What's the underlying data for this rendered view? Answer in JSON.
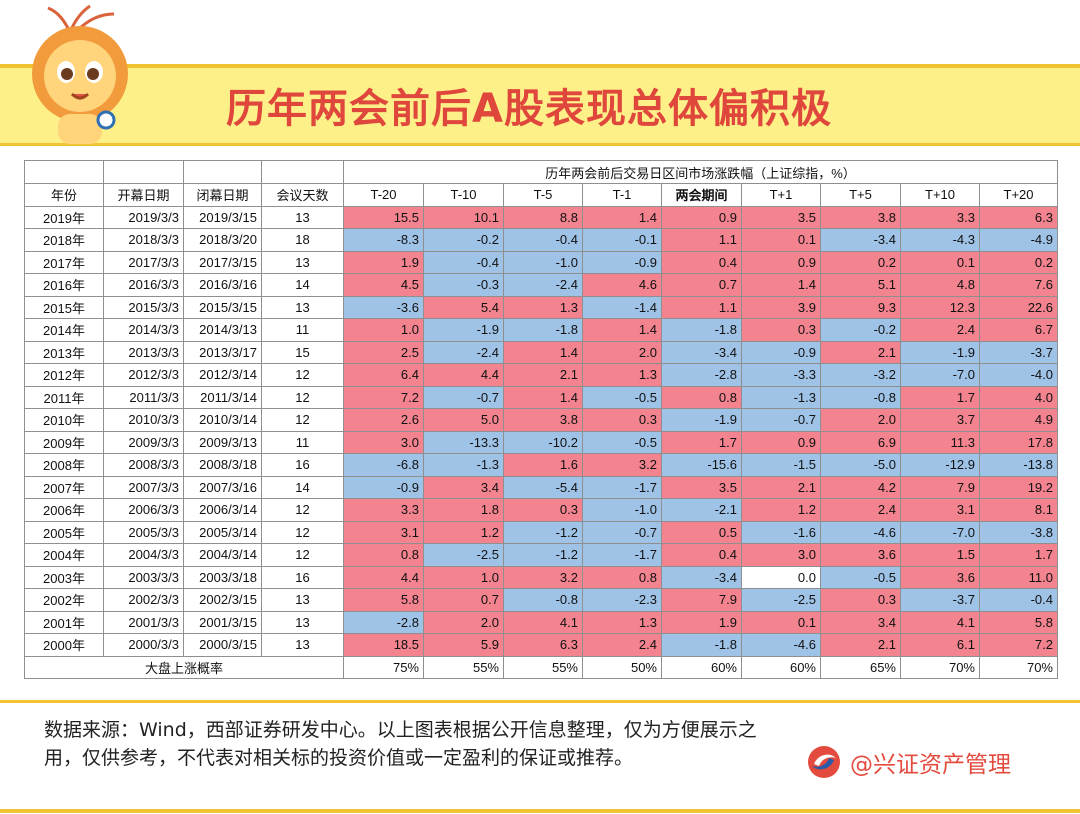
{
  "title": "历年两会前后A股表现总体偏积极",
  "table": {
    "group_header": "历年两会前后交易日区间市场涨跌幅（上证综指，%）",
    "headers": [
      "年份",
      "开幕日期",
      "闭幕日期",
      "会议天数",
      "T-20",
      "T-10",
      "T-5",
      "T-1",
      "两会期间",
      "T+1",
      "T+5",
      "T+10",
      "T+20"
    ],
    "rows": [
      {
        "year": "2019年",
        "open": "2019/3/3",
        "close": "2019/3/15",
        "days": "13",
        "v": [
          15.5,
          10.1,
          8.8,
          1.4,
          0.9,
          3.5,
          3.8,
          3.3,
          6.3
        ]
      },
      {
        "year": "2018年",
        "open": "2018/3/3",
        "close": "2018/3/20",
        "days": "18",
        "v": [
          -8.3,
          -0.2,
          -0.4,
          -0.1,
          1.1,
          0.1,
          -3.4,
          -4.3,
          -4.9
        ]
      },
      {
        "year": "2017年",
        "open": "2017/3/3",
        "close": "2017/3/15",
        "days": "13",
        "v": [
          1.9,
          -0.4,
          -1.0,
          -0.9,
          0.4,
          0.9,
          0.2,
          0.1,
          0.2
        ]
      },
      {
        "year": "2016年",
        "open": "2016/3/3",
        "close": "2016/3/16",
        "days": "14",
        "v": [
          4.5,
          -0.3,
          -2.4,
          4.6,
          0.7,
          1.4,
          5.1,
          4.8,
          7.6
        ]
      },
      {
        "year": "2015年",
        "open": "2015/3/3",
        "close": "2015/3/15",
        "days": "13",
        "v": [
          -3.6,
          5.4,
          1.3,
          -1.4,
          1.1,
          3.9,
          9.3,
          12.3,
          22.6
        ]
      },
      {
        "year": "2014年",
        "open": "2014/3/3",
        "close": "2014/3/13",
        "days": "11",
        "v": [
          1.0,
          -1.9,
          -1.8,
          1.4,
          -1.8,
          0.3,
          -0.2,
          2.4,
          6.7
        ]
      },
      {
        "year": "2013年",
        "open": "2013/3/3",
        "close": "2013/3/17",
        "days": "15",
        "v": [
          2.5,
          -2.4,
          1.4,
          2.0,
          -3.4,
          -0.9,
          2.1,
          -1.9,
          -3.7
        ]
      },
      {
        "year": "2012年",
        "open": "2012/3/3",
        "close": "2012/3/14",
        "days": "12",
        "v": [
          6.4,
          4.4,
          2.1,
          1.3,
          -2.8,
          -3.3,
          -3.2,
          -7.0,
          -4.0
        ]
      },
      {
        "year": "2011年",
        "open": "2011/3/3",
        "close": "2011/3/14",
        "days": "12",
        "v": [
          7.2,
          -0.7,
          1.4,
          -0.5,
          0.8,
          -1.3,
          -0.8,
          1.7,
          4.0
        ]
      },
      {
        "year": "2010年",
        "open": "2010/3/3",
        "close": "2010/3/14",
        "days": "12",
        "v": [
          2.6,
          5.0,
          3.8,
          0.3,
          -1.9,
          -0.7,
          2.0,
          3.7,
          4.9
        ]
      },
      {
        "year": "2009年",
        "open": "2009/3/3",
        "close": "2009/3/13",
        "days": "11",
        "v": [
          3.0,
          -13.3,
          -10.2,
          -0.5,
          1.7,
          0.9,
          6.9,
          11.3,
          17.8
        ]
      },
      {
        "year": "2008年",
        "open": "2008/3/3",
        "close": "2008/3/18",
        "days": "16",
        "v": [
          -6.8,
          -1.3,
          1.6,
          3.2,
          -15.6,
          -1.5,
          -5.0,
          -12.9,
          -13.8
        ]
      },
      {
        "year": "2007年",
        "open": "2007/3/3",
        "close": "2007/3/16",
        "days": "14",
        "v": [
          -0.9,
          3.4,
          -5.4,
          -1.7,
          3.5,
          2.1,
          4.2,
          7.9,
          19.2
        ]
      },
      {
        "year": "2006年",
        "open": "2006/3/3",
        "close": "2006/3/14",
        "days": "12",
        "v": [
          3.3,
          1.8,
          0.3,
          -1.0,
          -2.1,
          1.2,
          2.4,
          3.1,
          8.1
        ]
      },
      {
        "year": "2005年",
        "open": "2005/3/3",
        "close": "2005/3/14",
        "days": "12",
        "v": [
          3.1,
          1.2,
          -1.2,
          -0.7,
          0.5,
          -1.6,
          -4.6,
          -7.0,
          -3.8
        ]
      },
      {
        "year": "2004年",
        "open": "2004/3/3",
        "close": "2004/3/14",
        "days": "12",
        "v": [
          0.8,
          -2.5,
          -1.2,
          -1.7,
          0.4,
          3.0,
          3.6,
          1.5,
          1.7
        ]
      },
      {
        "year": "2003年",
        "open": "2003/3/3",
        "close": "2003/3/18",
        "days": "16",
        "v": [
          4.4,
          1.0,
          3.2,
          0.8,
          -3.4,
          0.0,
          -0.5,
          3.6,
          11.0
        ]
      },
      {
        "year": "2002年",
        "open": "2002/3/3",
        "close": "2002/3/15",
        "days": "13",
        "v": [
          5.8,
          0.7,
          -0.8,
          -2.3,
          7.9,
          -2.5,
          0.3,
          -3.7,
          -0.4
        ]
      },
      {
        "year": "2001年",
        "open": "2001/3/3",
        "close": "2001/3/15",
        "days": "13",
        "v": [
          -2.8,
          2.0,
          4.1,
          1.3,
          1.9,
          0.1,
          3.4,
          4.1,
          5.8
        ]
      },
      {
        "year": "2000年",
        "open": "2000/3/3",
        "close": "2000/3/15",
        "days": "13",
        "v": [
          18.5,
          5.9,
          6.3,
          2.4,
          -1.8,
          -4.6,
          2.1,
          6.1,
          7.2
        ]
      }
    ],
    "summary_label": "大盘上涨概率",
    "summary_values": [
      "75%",
      "55%",
      "55%",
      "50%",
      "60%",
      "60%",
      "65%",
      "70%",
      "70%"
    ]
  },
  "footer": {
    "disclaimer": "数据来源：Wind，西部证券研发中心。以上图表根据公开信息整理，仅为方便展示之用，仅供参考，不代表对相关标的投资价值或一定盈利的保证或推荐。",
    "brand": "@兴证资产管理"
  },
  "colors": {
    "positive": "#f2838f",
    "negative": "#9fc3e7",
    "title": "#e0473c",
    "band": "#fdf089"
  },
  "icons": {
    "mascot": "lion-mascot-icon",
    "brand_logo": "industrial-securities-logo-icon"
  }
}
